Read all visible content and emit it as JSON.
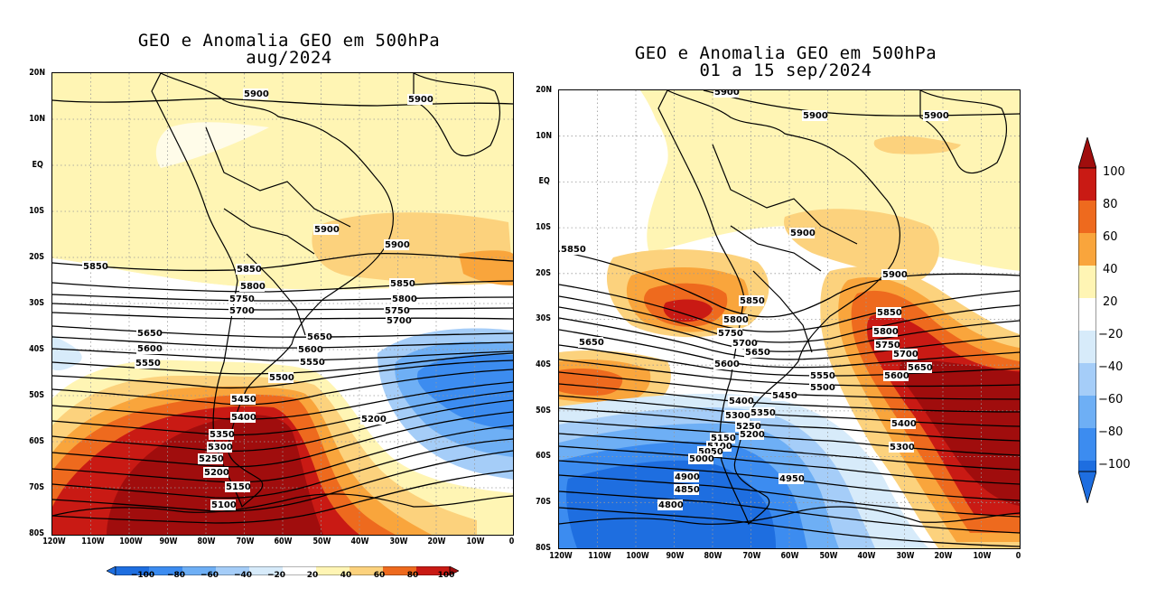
{
  "left_panel": {
    "title_line1": "GEO e Anomalia GEO em 500hPa",
    "title_line2": "aug/2024",
    "contour_labels": [
      "5900",
      "5900",
      "5900",
      "5900",
      "5850",
      "5850",
      "5850",
      "5800",
      "5800",
      "5750",
      "5750",
      "5700",
      "5700",
      "5650",
      "5650",
      "5600",
      "5600",
      "5550",
      "5550",
      "5500",
      "5450",
      "5400",
      "5350",
      "5300",
      "5250",
      "5200",
      "5200",
      "5150",
      "5100"
    ]
  },
  "right_panel": {
    "title_line1": "GEO e Anomalia GEO em 500hPa",
    "title_line2": "01 a 15 sep/2024",
    "contour_labels": [
      "5900",
      "5900",
      "5900",
      "5900",
      "5850",
      "5850",
      "5900",
      "5850",
      "5800",
      "5800",
      "5750",
      "5750",
      "5700",
      "5700",
      "5650",
      "5650",
      "5650",
      "5600",
      "5600",
      "5550",
      "5500",
      "5450",
      "5400",
      "5400",
      "5350",
      "5300",
      "5300",
      "5250",
      "5200",
      "5150",
      "5100",
      "5050",
      "5000",
      "4950",
      "4900",
      "4850",
      "4800"
    ]
  },
  "lat_labels": [
    "20N",
    "10N",
    "EQ",
    "10S",
    "20S",
    "30S",
    "40S",
    "50S",
    "60S",
    "70S",
    "80S"
  ],
  "lon_labels": [
    "120W",
    "110W",
    "100W",
    "90W",
    "80W",
    "70W",
    "60W",
    "50W",
    "40W",
    "30W",
    "20W",
    "10W",
    "0"
  ],
  "colorbar_vertical": {
    "labels": [
      "100",
      "80",
      "60",
      "40",
      "20",
      "−20",
      "−40",
      "−60",
      "−80",
      "−100"
    ]
  },
  "colorbar_horizontal": {
    "labels": [
      "−100",
      "−80",
      "−60",
      "−40",
      "−20",
      "20",
      "40",
      "60",
      "80",
      "100"
    ]
  },
  "colors": {
    "bins": [
      "#1e6ee0",
      "#3c8cf0",
      "#6eaff5",
      "#a5cdf8",
      "#d7ebfa",
      "#ffffff",
      "#fff5b4",
      "#fcd27d",
      "#f9a53c",
      "#ee6a1e",
      "#c91a14",
      "#a00d0d"
    ]
  }
}
